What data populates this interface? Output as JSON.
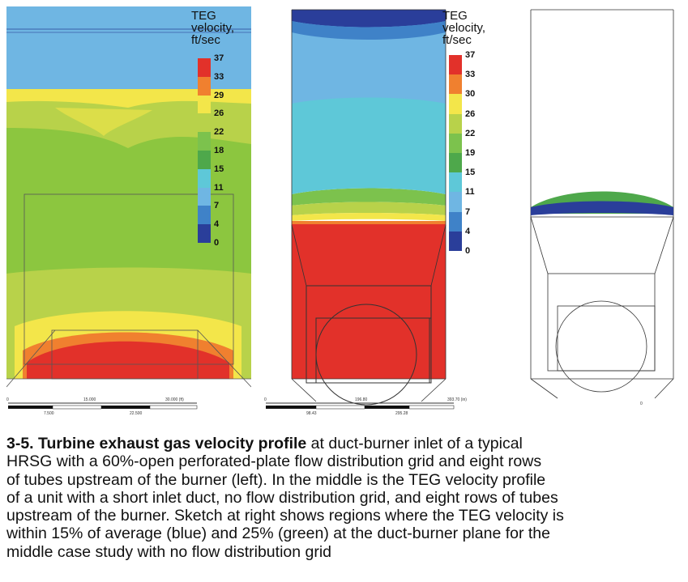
{
  "colors": {
    "red": "#e2312a",
    "orange": "#f0802f",
    "yellow": "#f3e64a",
    "light_green": "#b8d24a",
    "green": "#7cc24d",
    "dark_green": "#4ea84b",
    "cyan": "#5ec8d8",
    "light_blue": "#6fb6e3",
    "blue": "#3f82c8",
    "navy": "#2a3e9a"
  },
  "legend_left": {
    "title": [
      "TEG",
      "velocity,",
      "ft/sec"
    ],
    "ticks": [
      "37",
      "33",
      "29",
      "26",
      "22",
      "18",
      "15",
      "11",
      "7",
      "4",
      "0"
    ]
  },
  "legend_middle": {
    "title": [
      "TEG",
      "velocity,",
      "ft/sec"
    ],
    "ticks": [
      "37",
      "33",
      "30",
      "26",
      "22",
      "19",
      "15",
      "11",
      "7",
      "4",
      "0"
    ]
  },
  "scale_left": {
    "top": [
      "0",
      "15.000",
      "30.000 (ft)"
    ],
    "bottom": [
      "7.500",
      "22.500"
    ]
  },
  "scale_middle": {
    "top": [
      "0",
      "196.80",
      "393.70 (in)"
    ],
    "bottom": [
      "98.43",
      "295.28"
    ]
  },
  "scale_right": {
    "top": [
      "0"
    ]
  },
  "caption": {
    "bold": "3-5. Turbine exhaust gas velocity profile",
    "line1_rest": " at duct-burner inlet of a typical",
    "lines": [
      "HRSG with a 60%-open perforated-plate flow distribution grid and eight rows",
      "of tubes upstream of the burner (left). In the middle is the TEG velocity profile",
      "of a unit with a short inlet duct, no flow distribution grid, and eight rows of tubes",
      "upstream of the burner. Sketch at right shows regions where the TEG velocity is",
      "within 15% of average (blue) and 25% (green) at the duct-burner plane for the",
      "middle case study with no flow distribution grid"
    ]
  }
}
